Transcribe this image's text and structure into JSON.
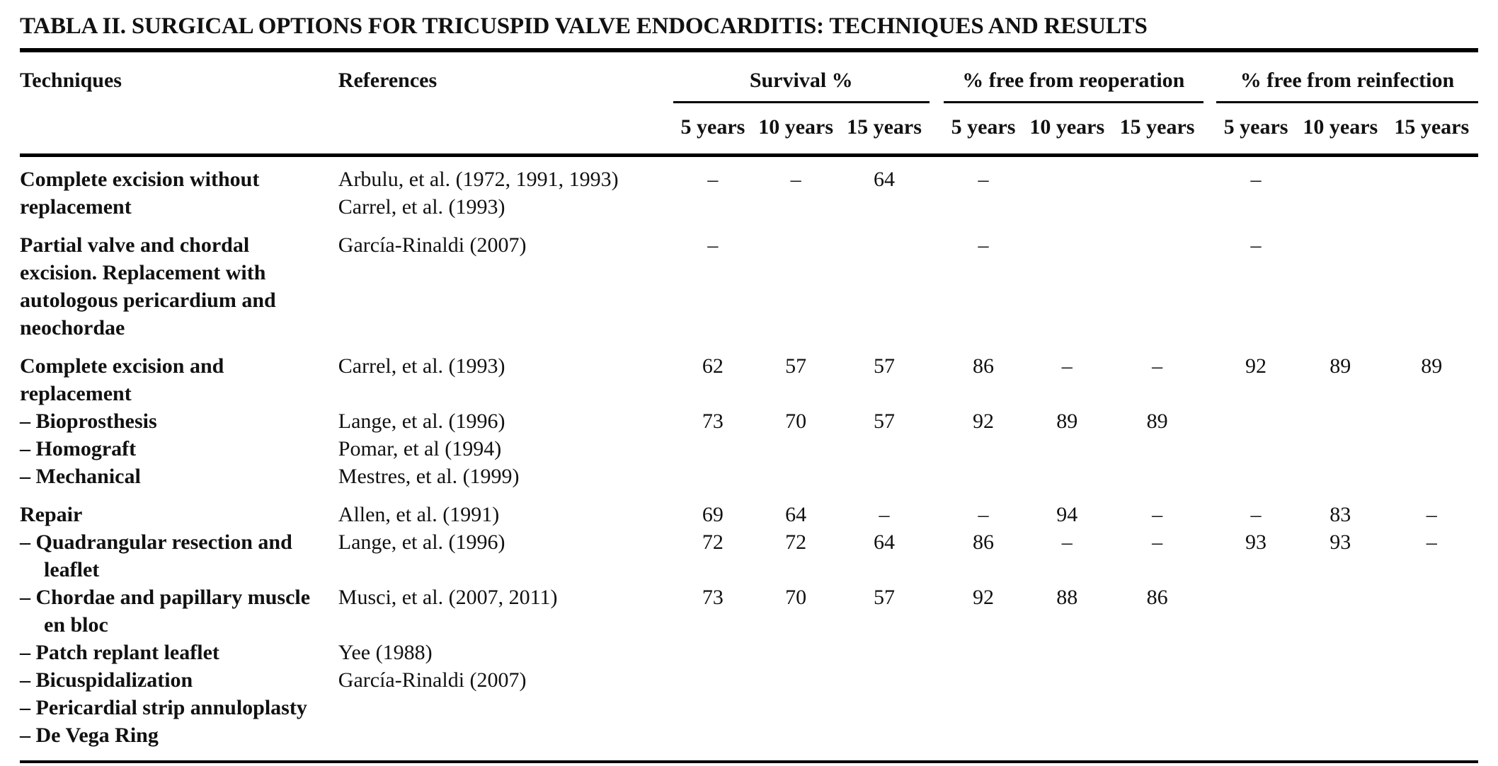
{
  "page": {
    "title": "TABLA II. SURGICAL OPTIONS FOR TRICUSPID VALVE ENDOCARDITIS: TECHNIQUES AND RESULTS"
  },
  "table": {
    "col_techniques": "Techniques",
    "col_references": "References",
    "groups": [
      {
        "label": "Survival %",
        "sub": [
          "5 years",
          "10 years",
          "15 years"
        ]
      },
      {
        "label": "% free from reoperation",
        "sub": [
          "5 years",
          "10 years",
          "15 years"
        ]
      },
      {
        "label": "% free from reinfection",
        "sub": [
          "5 years",
          "10 years",
          "15 years"
        ]
      }
    ],
    "missing_value_marker": "–",
    "rows": [
      {
        "technique": "Complete excision without replacement",
        "indent": false,
        "group_start": true,
        "references": [
          "Arbulu, et al. (1972, 1991, 1993)",
          "Carrel, et al. (1993)"
        ],
        "values": [
          "–",
          "–",
          "64",
          "–",
          "",
          "",
          "–",
          "",
          ""
        ]
      },
      {
        "technique": "Partial valve and chordal excision. Replacement with autologous pericardium and neochordae",
        "indent": false,
        "group_start": true,
        "references": [
          "García-Rinaldi (2007)"
        ],
        "values": [
          "–",
          "",
          "",
          "–",
          "",
          "",
          "–",
          "",
          ""
        ]
      },
      {
        "technique": "Complete excision and replacement",
        "indent": false,
        "group_start": true,
        "references": [
          "Carrel, et al. (1993)"
        ],
        "values": [
          "62",
          "57",
          "57",
          "86",
          "–",
          "–",
          "92",
          "89",
          "89"
        ]
      },
      {
        "technique": "– Bioprosthesis",
        "indent": true,
        "group_start": false,
        "references": [
          "Lange, et al. (1996)"
        ],
        "values": [
          "73",
          "70",
          "57",
          "92",
          "89",
          "89",
          "",
          "",
          ""
        ]
      },
      {
        "technique": "– Homograft",
        "indent": true,
        "group_start": false,
        "references": [
          "Pomar, et al (1994)"
        ],
        "values": [
          "",
          "",
          "",
          "",
          "",
          "",
          "",
          "",
          ""
        ]
      },
      {
        "technique": "– Mechanical",
        "indent": true,
        "group_start": false,
        "references": [
          "Mestres, et al. (1999)"
        ],
        "values": [
          "",
          "",
          "",
          "",
          "",
          "",
          "",
          "",
          ""
        ]
      },
      {
        "technique": "Repair",
        "indent": false,
        "group_start": true,
        "references": [
          "Allen, et al. (1991)"
        ],
        "values": [
          "69",
          "64",
          "–",
          "–",
          "94",
          "–",
          "–",
          "83",
          "–"
        ]
      },
      {
        "technique": "– Quadrangular resection and leaflet",
        "indent": true,
        "group_start": false,
        "references": [
          "Lange, et al. (1996)"
        ],
        "values": [
          "72",
          "72",
          "64",
          "86",
          "–",
          "–",
          "93",
          "93",
          "–"
        ]
      },
      {
        "technique": "– Chordae and papillary muscle en bloc",
        "indent": true,
        "group_start": false,
        "references": [
          "Musci, et al. (2007, 2011)"
        ],
        "values": [
          "73",
          "70",
          "57",
          "92",
          "88",
          "86",
          "",
          "",
          ""
        ]
      },
      {
        "technique": "– Patch replant leaflet",
        "indent": true,
        "group_start": false,
        "references": [
          "Yee (1988)"
        ],
        "values": [
          "",
          "",
          "",
          "",
          "",
          "",
          "",
          "",
          ""
        ]
      },
      {
        "technique": "– Bicuspidalization",
        "indent": true,
        "group_start": false,
        "references": [
          "García-Rinaldi (2007)"
        ],
        "values": [
          "",
          "",
          "",
          "",
          "",
          "",
          "",
          "",
          ""
        ]
      },
      {
        "technique": "– Pericardial strip annuloplasty",
        "indent": true,
        "group_start": false,
        "references": [],
        "values": [
          "",
          "",
          "",
          "",
          "",
          "",
          "",
          "",
          ""
        ]
      },
      {
        "technique": "– De Vega Ring",
        "indent": true,
        "group_start": false,
        "references": [],
        "values": [
          "",
          "",
          "",
          "",
          "",
          "",
          "",
          "",
          ""
        ]
      }
    ]
  },
  "colors": {
    "background": "#ffffff",
    "text": "#111111",
    "rule": "#000000"
  }
}
